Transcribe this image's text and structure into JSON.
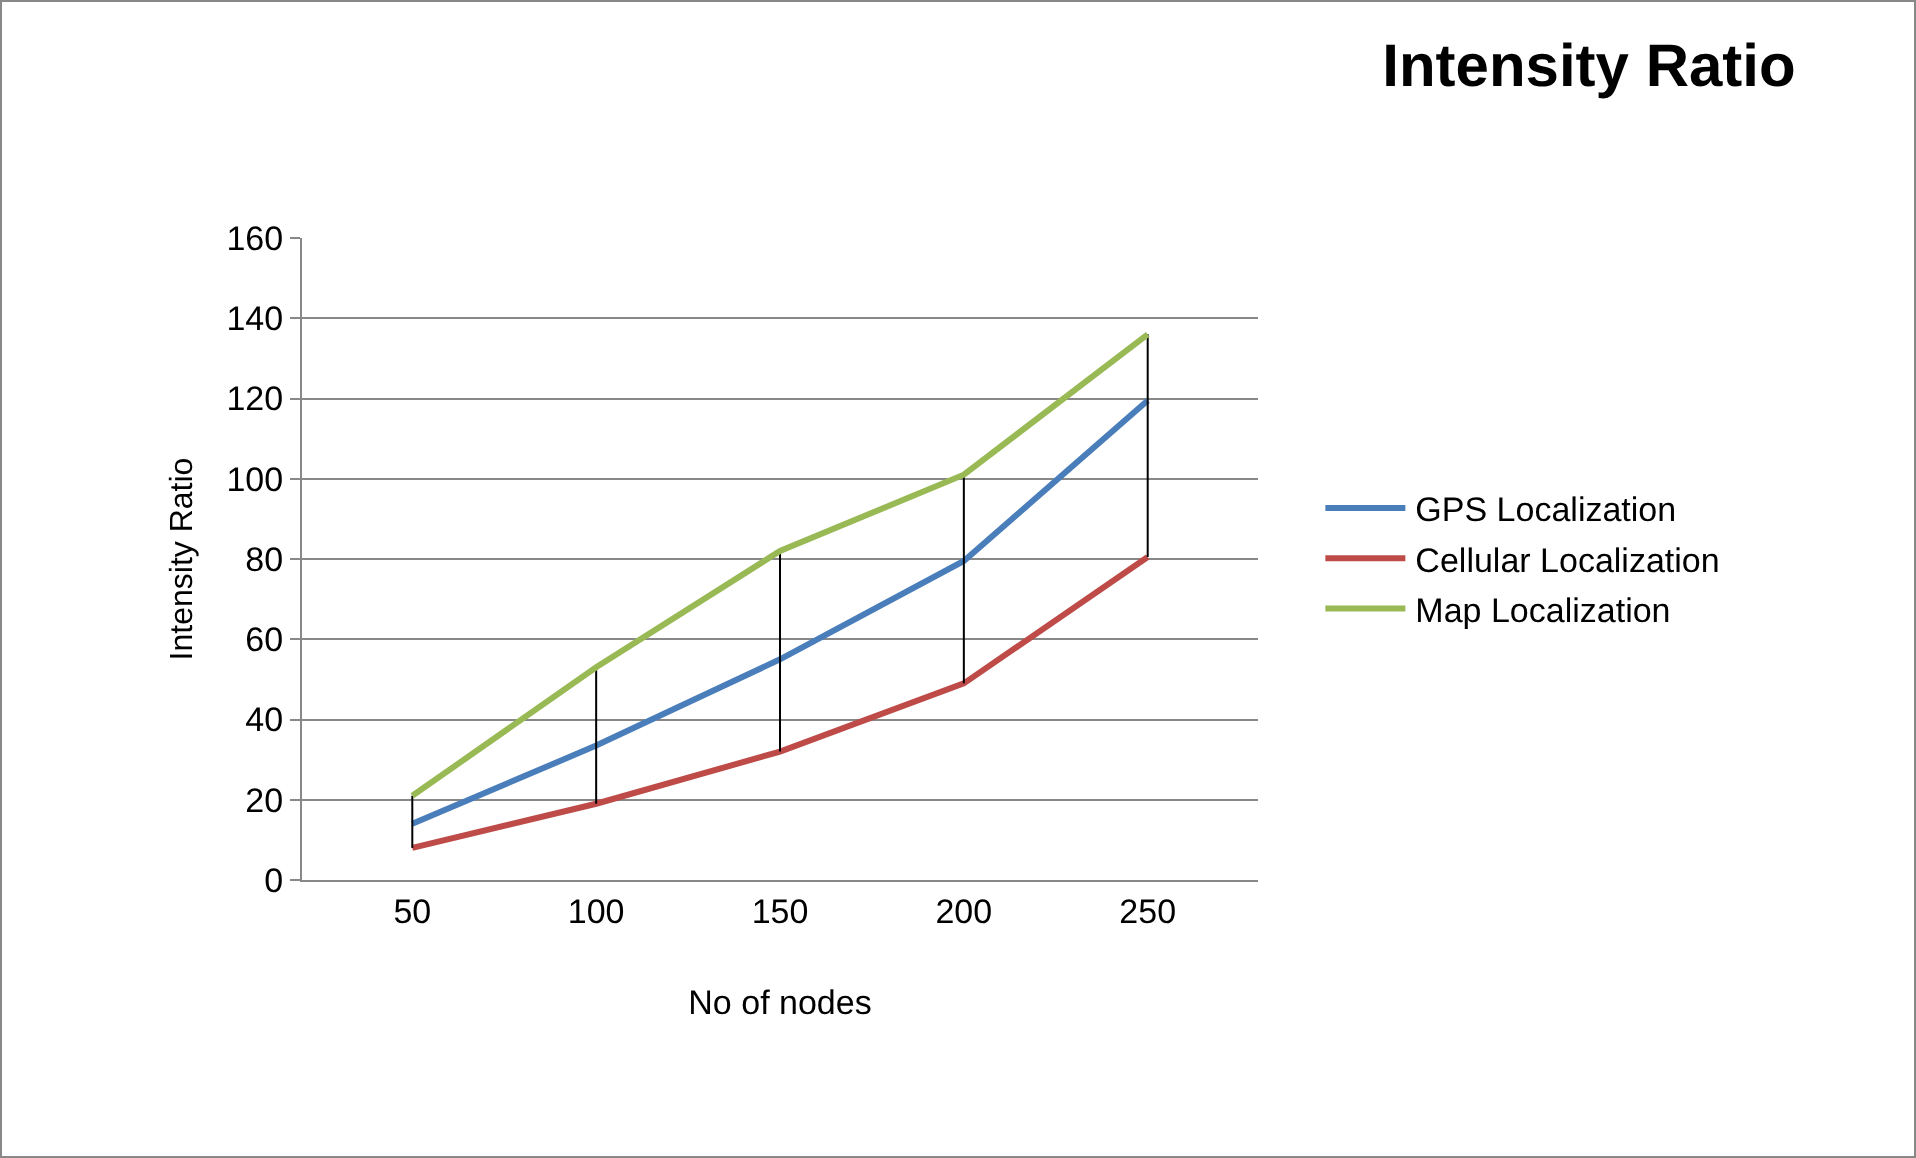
{
  "chart_data": {
    "type": "line",
    "title": "Intensity Ratio",
    "xlabel": "No of nodes",
    "ylabel": "Intensity Ratio",
    "categories": [
      "50",
      "100",
      "150",
      "200",
      "250"
    ],
    "series": [
      {
        "name": "GPS Localization",
        "color": "#4a7ebb",
        "values": [
          14,
          33.5,
          55,
          79.5,
          119.5
        ]
      },
      {
        "name": "Cellular Localization",
        "color": "#be4b48",
        "values": [
          8,
          19,
          32,
          49,
          80.5
        ]
      },
      {
        "name": "Map Localization",
        "color": "#98b954",
        "values": [
          21,
          53,
          82,
          101,
          136
        ],
        "errors": [
          [
            8,
            21
          ],
          [
            19,
            53
          ],
          [
            32,
            82
          ],
          [
            49,
            101
          ],
          [
            80.5,
            136
          ]
        ]
      }
    ],
    "ylim": [
      0,
      160
    ],
    "yticks": [
      0,
      20,
      40,
      60,
      80,
      100,
      120,
      140,
      160
    ],
    "grid": "y",
    "legend": "right",
    "marker": "none",
    "line_style": "solid"
  }
}
